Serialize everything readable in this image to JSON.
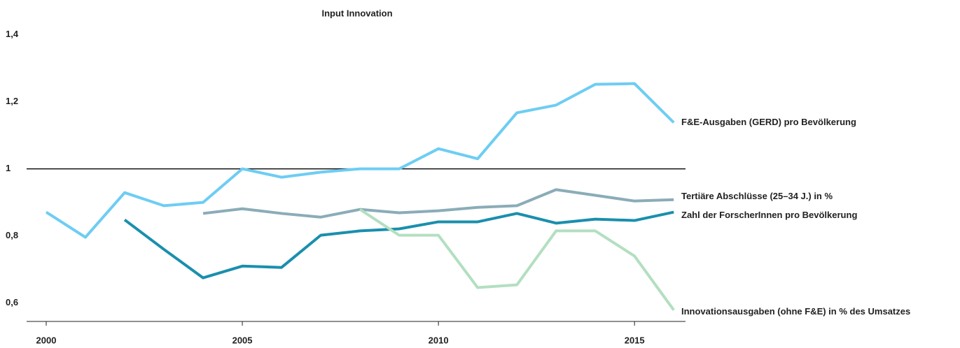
{
  "chart_data": {
    "type": "line",
    "title": "Input Innovation",
    "x": [
      2000,
      2001,
      2002,
      2003,
      2004,
      2005,
      2006,
      2007,
      2008,
      2009,
      2010,
      2011,
      2012,
      2013,
      2014,
      2015,
      2016
    ],
    "series": [
      {
        "name": "F&E-Ausgaben (GERD) pro Bevölkerung",
        "color": "#6dcdf3",
        "values": [
          0.871,
          0.796,
          0.929,
          0.89,
          0.9,
          1.0,
          0.975,
          0.99,
          1.0,
          1.0,
          1.06,
          1.03,
          1.167,
          1.19,
          1.252,
          1.254,
          1.138
        ]
      },
      {
        "name": "Tertiäre Abschlüsse (25–34 J.) in %",
        "color": "#8aacb8",
        "values": [
          null,
          null,
          null,
          null,
          0.867,
          0.881,
          0.867,
          0.856,
          0.879,
          0.869,
          0.875,
          0.885,
          0.89,
          0.938,
          0.921,
          0.904,
          0.908
        ]
      },
      {
        "name": "Zahl der ForscherInnen pro Bevölkerung",
        "color": "#1a8fad",
        "values": [
          null,
          null,
          0.848,
          0.76,
          0.675,
          0.71,
          0.706,
          0.802,
          0.815,
          0.821,
          0.842,
          0.842,
          0.867,
          0.838,
          0.85,
          0.846,
          0.871
        ]
      },
      {
        "name": "Innovationsausgaben (ohne F&E) in % des Umsatzes",
        "color": "#b3dfc0",
        "values": [
          null,
          null,
          null,
          null,
          null,
          null,
          null,
          null,
          0.879,
          0.802,
          0.802,
          0.646,
          0.654,
          0.815,
          0.815,
          0.74,
          0.579
        ]
      }
    ],
    "xlim": [
      1999.5,
      2016.3
    ],
    "xticks": [
      2000,
      2005,
      2010,
      2015
    ],
    "ylim": [
      0.545,
      1.42
    ],
    "yticks": [
      {
        "value": 0.6,
        "label": "0,6"
      },
      {
        "value": 0.8,
        "label": "0,8"
      },
      1,
      {
        "value": 1.2,
        "label": "1,2"
      },
      {
        "value": 1.4,
        "label": "1,4"
      }
    ],
    "reference_line": 1
  }
}
